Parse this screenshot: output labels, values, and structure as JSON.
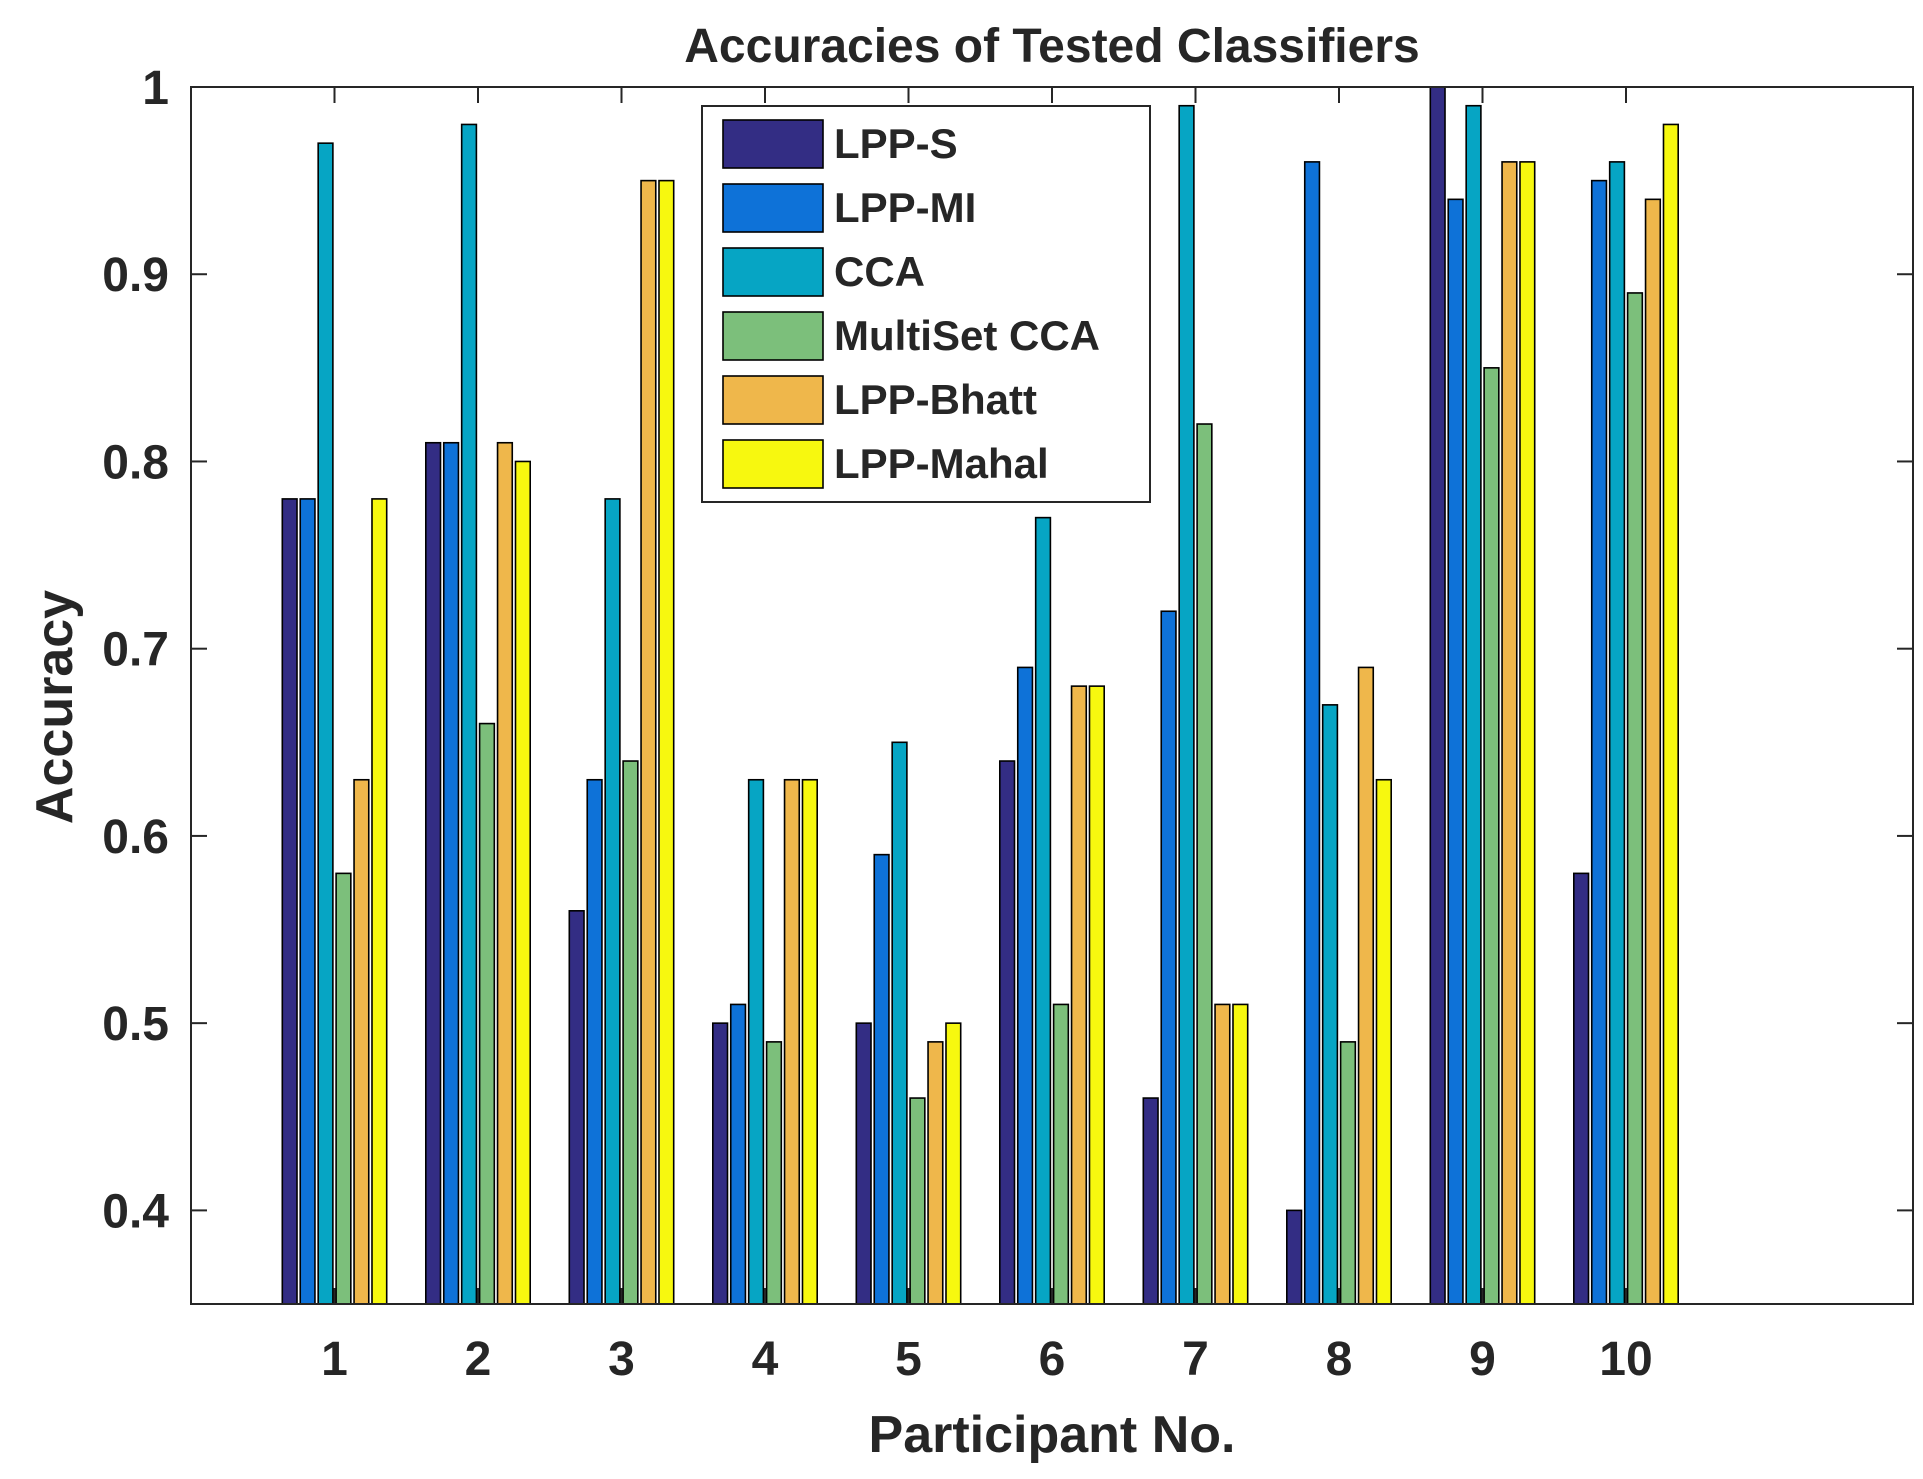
{
  "chart_data": {
    "type": "bar",
    "title": "Accuracies of Tested Classifiers",
    "xlabel": "Participant No.",
    "ylabel": "Accuracy",
    "categories": [
      "1",
      "2",
      "3",
      "4",
      "5",
      "6",
      "7",
      "8",
      "9",
      "10"
    ],
    "xlim": [
      0,
      12
    ],
    "ylim": [
      0.35,
      1
    ],
    "yticks": [
      0.4,
      0.5,
      0.6,
      0.7,
      0.8,
      0.9,
      1
    ],
    "ytick_labels": [
      "0.4",
      "0.5",
      "0.6",
      "0.7",
      "0.8",
      "0.9",
      "1"
    ],
    "grid": false,
    "legend_position": "top-center",
    "series": [
      {
        "name": "LPP-S",
        "color": "#332d84",
        "values": [
          0.78,
          0.81,
          0.56,
          0.5,
          0.5,
          0.64,
          0.46,
          0.4,
          1.0,
          0.58
        ]
      },
      {
        "name": "LPP-MI",
        "color": "#0e72d8",
        "values": [
          0.78,
          0.81,
          0.63,
          0.51,
          0.59,
          0.69,
          0.72,
          0.96,
          0.94,
          0.95
        ]
      },
      {
        "name": "CCA",
        "color": "#06a5c4",
        "values": [
          0.97,
          0.98,
          0.78,
          0.63,
          0.65,
          0.77,
          0.99,
          0.67,
          0.99,
          0.96
        ]
      },
      {
        "name": "MultiSet CCA",
        "color": "#7cbf7b",
        "values": [
          0.58,
          0.66,
          0.64,
          0.49,
          0.46,
          0.51,
          0.82,
          0.49,
          0.85,
          0.89
        ]
      },
      {
        "name": "LPP-Bhatt",
        "color": "#efb74b",
        "values": [
          0.63,
          0.81,
          0.95,
          0.63,
          0.49,
          0.68,
          0.51,
          0.69,
          0.96,
          0.94
        ]
      },
      {
        "name": "LPP-Mahal",
        "color": "#f7f80f",
        "values": [
          0.78,
          0.8,
          0.95,
          0.63,
          0.5,
          0.68,
          0.51,
          0.63,
          0.96,
          0.98
        ]
      }
    ]
  }
}
